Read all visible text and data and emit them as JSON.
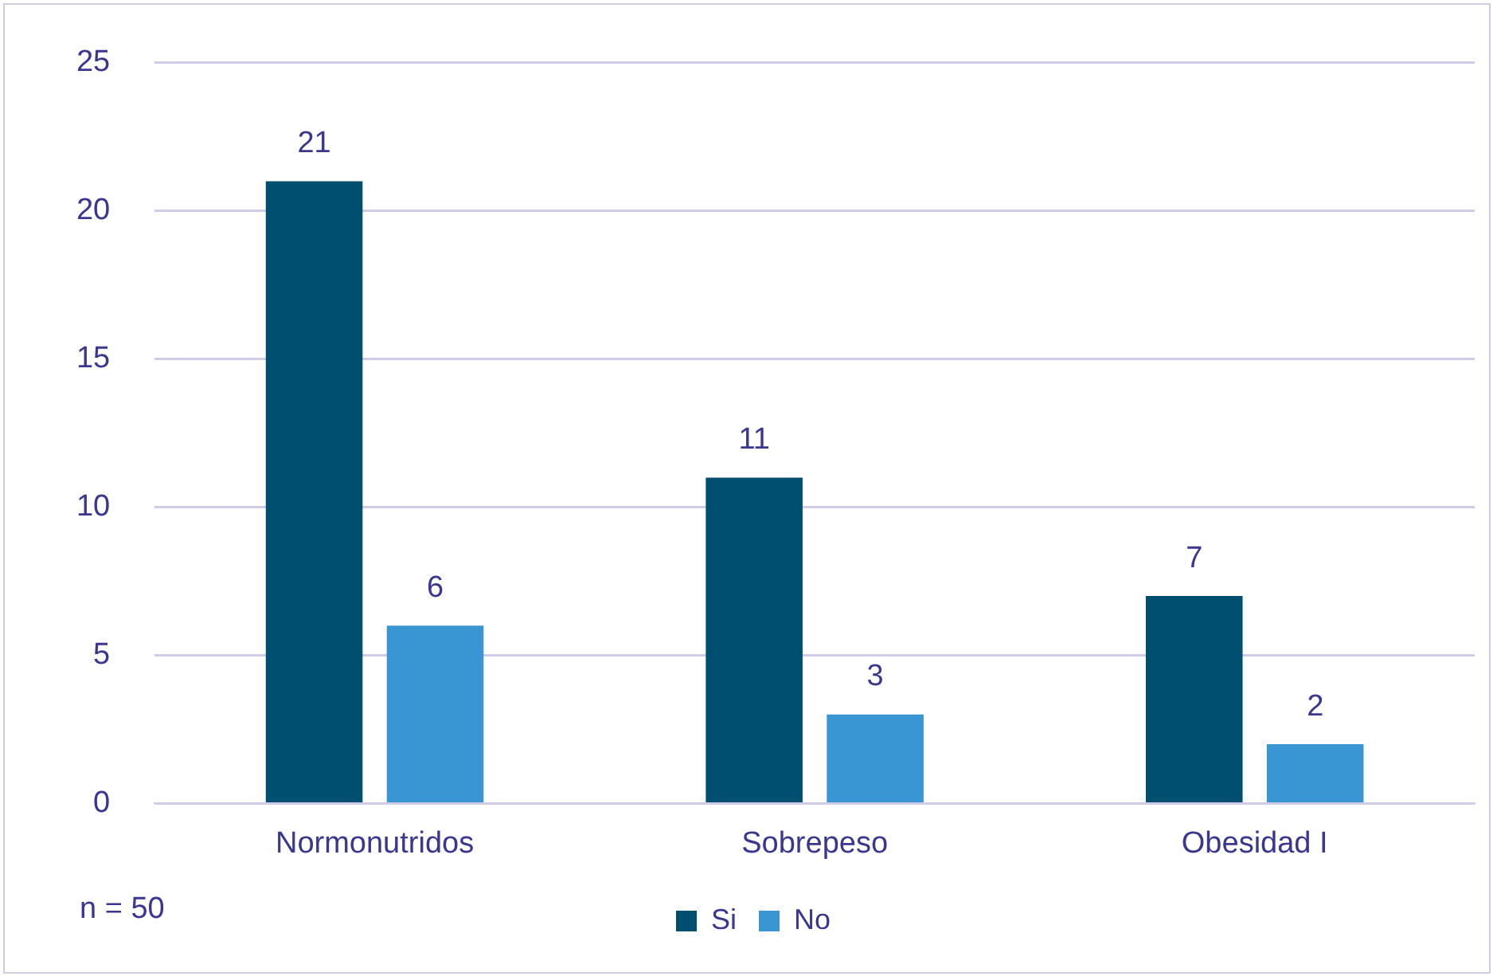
{
  "chart_data": {
    "type": "bar",
    "categories": [
      "Normonutridos",
      "Sobrepeso",
      "Obesidad I"
    ],
    "series": [
      {
        "name": "Si",
        "color": "#004f71",
        "values": [
          21,
          11,
          7
        ]
      },
      {
        "name": "No",
        "color": "#3a96d2",
        "values": [
          6,
          3,
          2
        ]
      }
    ],
    "ylim": [
      0,
      25
    ],
    "yticks": [
      0,
      5,
      10,
      15,
      20,
      25
    ],
    "grid": "y",
    "legend": "bottom",
    "data_labels": true,
    "annotations": [
      "n = 50"
    ]
  }
}
